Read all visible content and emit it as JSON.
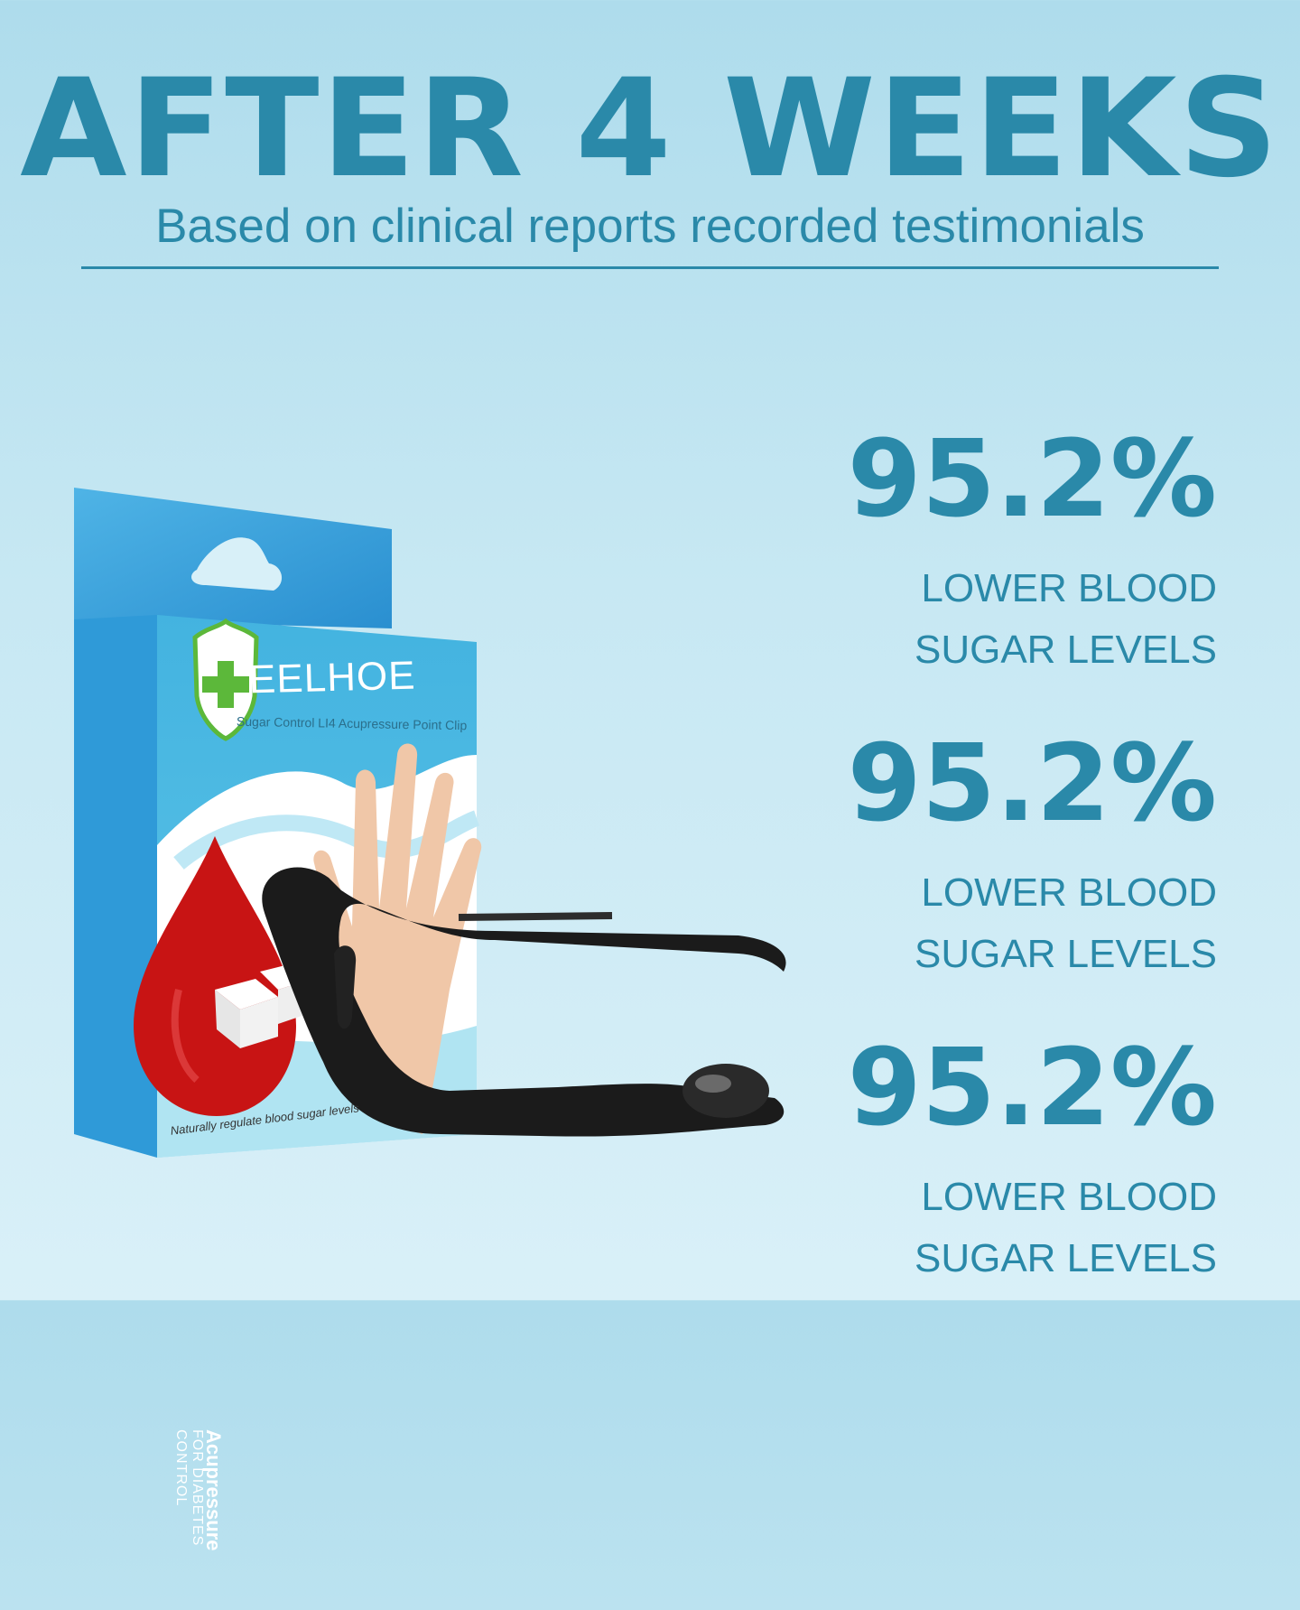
{
  "headline": "AFTER 4 WEEKS",
  "subtitle": "Based on clinical reports recorded testimonials",
  "stats": [
    {
      "value": "95.2%",
      "label": "LOWER BLOOD SUGAR LEVELS"
    },
    {
      "value": "95.2%",
      "label": "LOWER BLOOD SUGAR LEVELS"
    },
    {
      "value": "95.2%",
      "label": "LOWER BLOOD SUGAR LEVELS"
    }
  ],
  "product": {
    "brand": "EELHOE",
    "subtitle": "Sugar Control  LI4 Acupressure Point Clip",
    "tagline": "Naturally regulate blood sugar levels",
    "side_title": "Acupressure",
    "side_subtitle": "FOR DIABETES CONTROL"
  },
  "colors": {
    "accent": "#2a89a9",
    "box_blue": "#3aa6dc",
    "drop_red": "#c81414",
    "clip_black": "#1a1a1a",
    "shield_green": "#5cb83a"
  }
}
